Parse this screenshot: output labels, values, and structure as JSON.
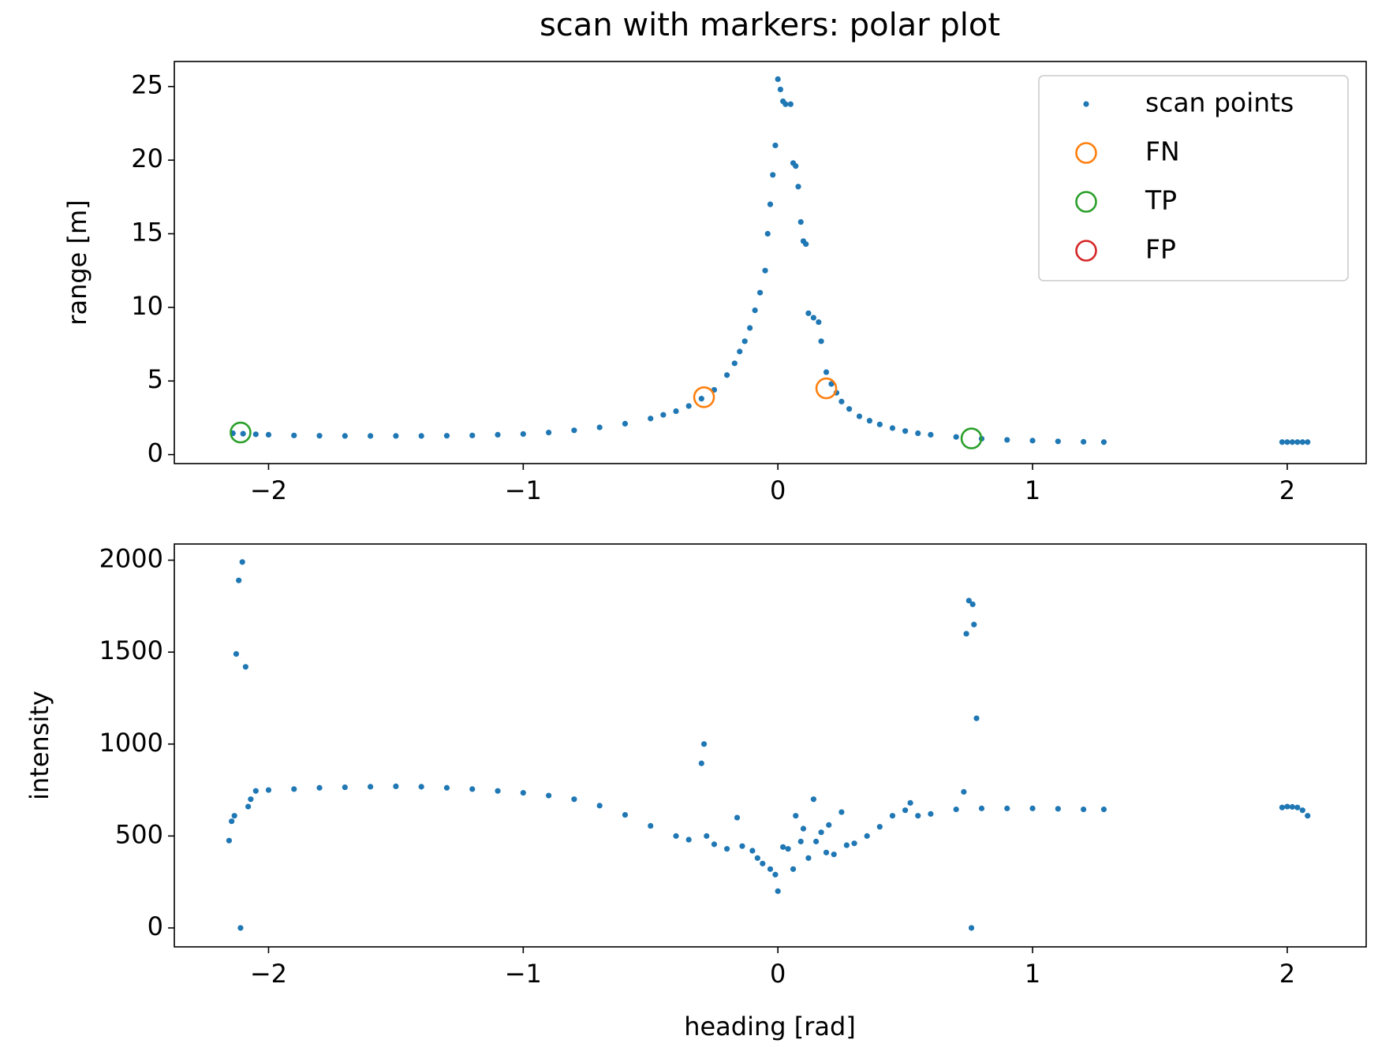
{
  "chart_data": [
    {
      "type": "scatter",
      "title": "scan with markers: polar plot",
      "y_label": "range [m]",
      "xlim": [
        -2.37,
        2.31
      ],
      "ylim": [
        -0.61,
        26.7
      ],
      "xticks": [
        {
          "value": -2,
          "label": "−2"
        },
        {
          "value": -1,
          "label": "−1"
        },
        0,
        1,
        2
      ],
      "yticks": [
        0,
        5,
        10,
        15,
        20,
        25
      ],
      "legend": "upper right",
      "series": [
        {
          "name": "scan points",
          "color": "#1f77b4",
          "marker": "dot",
          "x": [
            -2.14,
            -2.1,
            -2.05,
            -2.0,
            -1.9,
            -1.8,
            -1.7,
            -1.6,
            -1.5,
            -1.4,
            -1.3,
            -1.2,
            -1.1,
            -1.0,
            -0.9,
            -0.8,
            -0.7,
            -0.6,
            -0.5,
            -0.45,
            -0.4,
            -0.35,
            -0.3,
            -0.25,
            -0.2,
            -0.17,
            -0.15,
            -0.13,
            -0.11,
            -0.09,
            -0.07,
            -0.05,
            -0.04,
            -0.03,
            -0.02,
            -0.01,
            0.0,
            0.01,
            0.02,
            0.03,
            0.05,
            0.06,
            0.07,
            0.08,
            0.09,
            0.1,
            0.11,
            0.12,
            0.14,
            0.16,
            0.17,
            0.19,
            0.21,
            0.23,
            0.25,
            0.28,
            0.32,
            0.36,
            0.4,
            0.45,
            0.5,
            0.55,
            0.6,
            0.7,
            0.8,
            0.9,
            1.0,
            1.1,
            1.2,
            1.28,
            1.98,
            2.0,
            2.02,
            2.04,
            2.06,
            2.08
          ],
          "values": [
            1.45,
            1.42,
            1.38,
            1.35,
            1.3,
            1.28,
            1.27,
            1.27,
            1.27,
            1.27,
            1.28,
            1.3,
            1.35,
            1.4,
            1.5,
            1.65,
            1.85,
            2.1,
            2.45,
            2.7,
            2.95,
            3.3,
            3.8,
            4.4,
            5.4,
            6.2,
            7.0,
            7.7,
            8.6,
            9.8,
            11.0,
            12.5,
            15.0,
            17.0,
            19.0,
            21.0,
            25.5,
            24.8,
            24.0,
            23.8,
            23.8,
            19.8,
            19.6,
            18.2,
            15.8,
            14.5,
            14.3,
            9.6,
            9.3,
            9.0,
            7.7,
            5.6,
            4.8,
            4.2,
            3.6,
            3.1,
            2.6,
            2.3,
            2.05,
            1.8,
            1.6,
            1.45,
            1.35,
            1.2,
            1.08,
            1.0,
            0.95,
            0.9,
            0.87,
            0.85,
            0.85,
            0.85,
            0.85,
            0.85,
            0.85,
            0.85
          ]
        },
        {
          "name": "FN",
          "color": "#ff7f0e",
          "marker": "ring",
          "x": [
            -0.29,
            0.19
          ],
          "values": [
            3.9,
            4.5
          ]
        },
        {
          "name": "TP",
          "color": "#2ca02c",
          "marker": "ring",
          "x": [
            -2.11,
            0.76
          ],
          "values": [
            1.5,
            1.1
          ]
        },
        {
          "name": "FP",
          "color": "#d62728",
          "marker": "ring",
          "x": [],
          "values": []
        }
      ]
    },
    {
      "type": "scatter",
      "x_label": "heading [rad]",
      "y_label": "intensity",
      "xlim": [
        -2.37,
        2.31
      ],
      "ylim": [
        -103,
        2088
      ],
      "xticks": [
        {
          "value": -2,
          "label": "−2"
        },
        {
          "value": -1,
          "label": "−1"
        },
        0,
        1,
        2
      ],
      "yticks": [
        0,
        500,
        1000,
        1500,
        2000
      ],
      "series": [
        {
          "color": "#1f77b4",
          "marker": "dot",
          "x": [
            -2.155,
            -2.145,
            -2.134,
            -2.127,
            -2.117,
            -2.11,
            -2.103,
            -2.09,
            -2.08,
            -2.07,
            -2.05,
            -2.0,
            -1.9,
            -1.8,
            -1.7,
            -1.6,
            -1.5,
            -1.4,
            -1.3,
            -1.2,
            -1.1,
            -1.0,
            -0.9,
            -0.8,
            -0.7,
            -0.6,
            -0.5,
            -0.4,
            -0.35,
            -0.3,
            -0.29,
            -0.28,
            -0.25,
            -0.2,
            -0.16,
            -0.14,
            -0.1,
            -0.08,
            -0.06,
            -0.03,
            -0.01,
            0.0,
            0.02,
            0.04,
            0.06,
            0.07,
            0.09,
            0.1,
            0.12,
            0.14,
            0.15,
            0.17,
            0.19,
            0.2,
            0.22,
            0.25,
            0.27,
            0.3,
            0.35,
            0.4,
            0.45,
            0.5,
            0.52,
            0.55,
            0.6,
            0.7,
            0.73,
            0.74,
            0.75,
            0.76,
            0.765,
            0.77,
            0.78,
            0.8,
            0.9,
            1.0,
            1.1,
            1.2,
            1.28,
            1.98,
            2.0,
            2.02,
            2.04,
            2.06,
            2.08
          ],
          "values": [
            475,
            580,
            610,
            1490,
            1890,
            0,
            1990,
            1420,
            660,
            700,
            745,
            750,
            755,
            762,
            765,
            768,
            770,
            768,
            762,
            755,
            745,
            735,
            720,
            700,
            665,
            615,
            555,
            500,
            480,
            895,
            1000,
            500,
            455,
            430,
            600,
            445,
            420,
            380,
            350,
            320,
            290,
            200,
            440,
            430,
            320,
            610,
            470,
            540,
            380,
            700,
            470,
            520,
            410,
            560,
            400,
            630,
            450,
            460,
            500,
            550,
            610,
            640,
            680,
            610,
            620,
            645,
            740,
            1600,
            1780,
            0,
            1760,
            1650,
            1140,
            650,
            650,
            650,
            648,
            645,
            645,
            655,
            660,
            658,
            655,
            640,
            610
          ]
        }
      ]
    }
  ]
}
